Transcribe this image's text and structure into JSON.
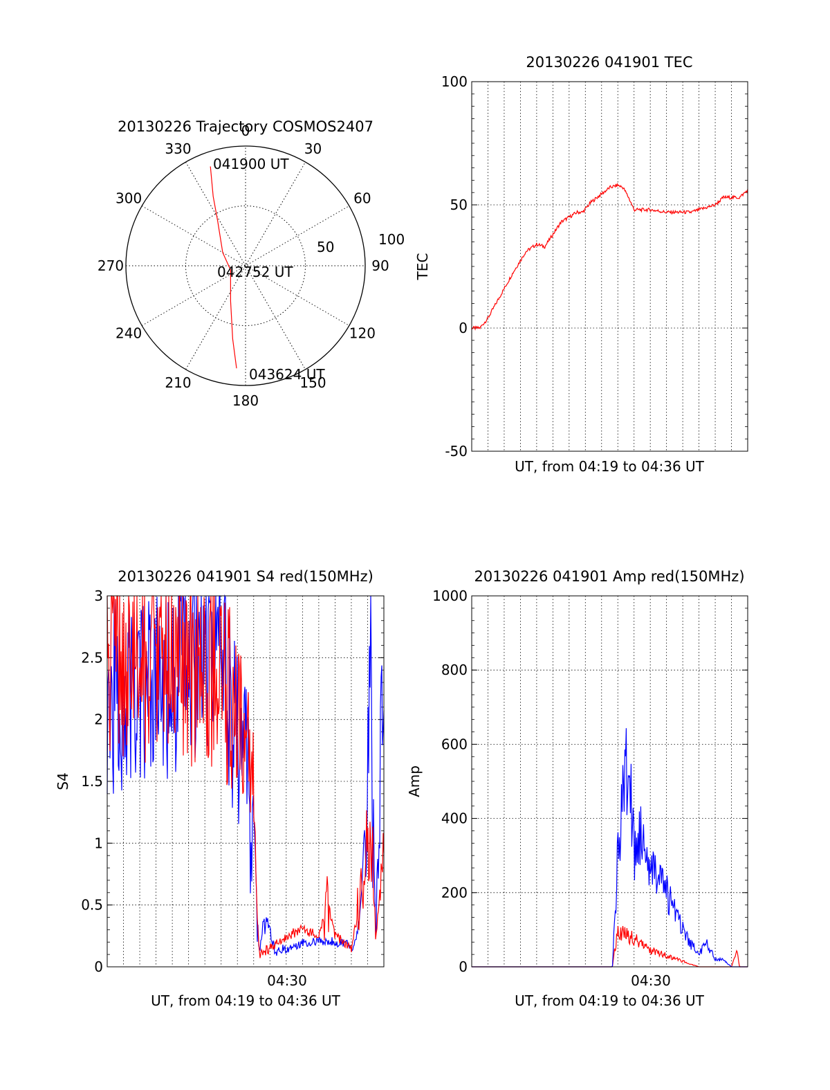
{
  "colors": {
    "red": "#ff0000",
    "blue": "#0000ff",
    "axis": "#000000"
  },
  "chart_data": [
    {
      "type": "polar",
      "title": "20130226 Trajectory COSMOS2407",
      "angle_labels": [
        "0",
        "30",
        "60",
        "90",
        "120",
        "150",
        "180",
        "210",
        "240",
        "270",
        "300",
        "330"
      ],
      "radial_ticks": [
        "50",
        "100"
      ],
      "rlim": [
        0,
        100
      ],
      "grid": true,
      "trajectory_labels": {
        "start": "041900 UT",
        "mid": "042752 UT",
        "end": "043624 UT"
      },
      "trajectory": [
        {
          "az": 340.5,
          "r": 88
        },
        {
          "az": 335,
          "r": 64
        },
        {
          "az": 328,
          "r": 44
        },
        {
          "az": 300,
          "r": 22
        },
        {
          "az": 254,
          "r": 13
        },
        {
          "az": 203,
          "r": 32
        },
        {
          "az": 190,
          "r": 62
        },
        {
          "az": 185,
          "r": 86
        }
      ]
    },
    {
      "type": "line",
      "title": "20130226 041901 TEC",
      "xlabel": "UT, from 04:19 to 04:36 UT",
      "ylabel": "TEC",
      "xlim": [
        "04:19",
        "04:36"
      ],
      "ylim": [
        -50,
        100
      ],
      "yticks": [
        "100",
        "50",
        "0",
        "-50"
      ],
      "grid": true,
      "series": [
        {
          "color": "#ff0000",
          "x": [
            "04:19:00",
            "04:19:30",
            "04:20:00",
            "04:20:40",
            "04:21:30",
            "04:22:20",
            "04:23:00",
            "04:23:30",
            "04:24:30",
            "04:25:30",
            "04:25:50",
            "04:26:20",
            "04:27:30",
            "04:28:00",
            "04:28:20",
            "04:28:40",
            "04:29:00",
            "04:30:00",
            "04:31:00",
            "04:32:30",
            "04:33:30",
            "04:34:00",
            "04:34:30",
            "04:35:30",
            "04:36:00"
          ],
          "y": [
            0,
            0,
            4,
            12,
            22,
            31,
            34,
            33,
            43,
            47,
            47,
            51,
            57,
            58,
            57,
            53,
            48,
            48,
            47,
            47,
            49,
            50,
            53,
            53,
            56
          ]
        }
      ]
    },
    {
      "type": "line",
      "title": "20130226 041901 S4 red(150MHz)",
      "xlabel": "UT, from 04:19 to 04:36 UT",
      "ylabel": "S4",
      "xlim": [
        "04:19",
        "04:36"
      ],
      "ylim": [
        0,
        3
      ],
      "xticks": [
        "04:30"
      ],
      "yticks": [
        "3",
        "2.5",
        "2",
        "1.5",
        "1",
        "0.5",
        "0"
      ],
      "grid": true,
      "series": [
        {
          "color": "#0000ff",
          "x": [
            "04:19:00",
            "04:22:00",
            "04:25:50",
            "04:27:40",
            "04:28:00",
            "04:28:20",
            "04:28:40",
            "04:29:20",
            "04:30:00",
            "04:31:00",
            "04:32:00",
            "04:33:30",
            "04:34:10",
            "04:34:40",
            "04:35:10",
            "04:35:30",
            "04:36:00"
          ],
          "y": [
            2.2,
            2.2,
            2.6,
            1.5,
            1.1,
            0.1,
            0.45,
            0.12,
            0.15,
            0.2,
            0.2,
            0.2,
            0.15,
            0.5,
            2.5,
            0.15,
            2.5
          ]
        },
        {
          "color": "#ff0000",
          "x": [
            "04:19:00",
            "04:22:00",
            "04:26:00",
            "04:27:40",
            "04:28:00",
            "04:28:20",
            "04:29:00",
            "04:30:00",
            "04:31:00",
            "04:32:00",
            "04:32:30",
            "04:33:00",
            "04:34:00",
            "04:34:40",
            "04:35:10",
            "04:35:30",
            "04:36:00"
          ],
          "y": [
            2.5,
            2.4,
            2.4,
            1.5,
            1.2,
            0.1,
            0.15,
            0.25,
            0.3,
            0.25,
            0.5,
            0.25,
            0.15,
            0.6,
            1.5,
            0.2,
            1.0
          ]
        }
      ]
    },
    {
      "type": "line",
      "title": "20130226 041901 Amp red(150MHz)",
      "xlabel": "UT, from 04:19 to 04:36 UT",
      "ylabel": "Amp",
      "xlim": [
        "04:19",
        "04:36"
      ],
      "ylim": [
        0,
        1000
      ],
      "xticks": [
        "04:30"
      ],
      "yticks": [
        "1000",
        "800",
        "600",
        "400",
        "200",
        "0"
      ],
      "grid": true,
      "series": [
        {
          "color": "#0000ff",
          "x": [
            "04:19:00",
            "04:27:40",
            "04:28:00",
            "04:28:20",
            "04:28:40",
            "04:29:00",
            "04:29:30",
            "04:30:00",
            "04:30:30",
            "04:31:00",
            "04:31:30",
            "04:32:00",
            "04:32:30",
            "04:33:00",
            "04:33:30",
            "04:34:00",
            "04:34:30",
            "04:35:00",
            "04:36:00"
          ],
          "y": [
            0,
            0,
            300,
            480,
            560,
            300,
            360,
            280,
            240,
            200,
            150,
            110,
            60,
            40,
            60,
            20,
            20,
            0,
            0
          ]
        },
        {
          "color": "#ff0000",
          "x": [
            "04:19:00",
            "04:27:40",
            "04:28:00",
            "04:28:30",
            "04:29:00",
            "04:29:30",
            "04:30:00",
            "04:31:00",
            "04:32:00",
            "04:32:40",
            "04:33:00",
            "04:35:00",
            "04:35:20",
            "04:35:30",
            "04:36:00"
          ],
          "y": [
            0,
            0,
            100,
            85,
            75,
            60,
            45,
            30,
            15,
            5,
            0,
            0,
            40,
            0,
            0
          ]
        }
      ]
    }
  ]
}
